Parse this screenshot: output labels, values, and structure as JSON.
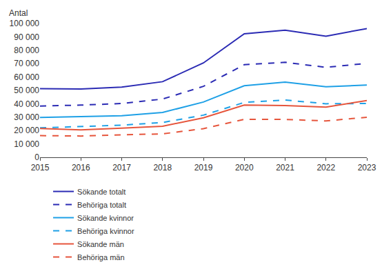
{
  "chart_data": {
    "type": "line",
    "ylabel": "Antal",
    "x": [
      2015,
      2016,
      2017,
      2018,
      2019,
      2020,
      2021,
      2022,
      2023
    ],
    "series": [
      {
        "name": "Sökande totalt",
        "color": "#2b2bb4",
        "line_style": "solid",
        "values": [
          51300,
          51000,
          52400,
          56500,
          70500,
          92300,
          95000,
          90500,
          96200
        ]
      },
      {
        "name": "Behöriga totalt",
        "color": "#2b2bb4",
        "line_style": "dash",
        "values": [
          38300,
          39000,
          40200,
          43500,
          53000,
          69200,
          71000,
          67200,
          70200
        ]
      },
      {
        "name": "Sökande kvinnor",
        "color": "#1ea0e6",
        "line_style": "solid",
        "values": [
          29800,
          30500,
          31000,
          33500,
          41300,
          53500,
          56200,
          52700,
          54000
        ]
      },
      {
        "name": "Behöriga kvinnor",
        "color": "#1ea0e6",
        "line_style": "dash",
        "values": [
          22000,
          23100,
          24000,
          26000,
          31500,
          41000,
          42800,
          40000,
          40200
        ]
      },
      {
        "name": "Sökande män",
        "color": "#e6553c",
        "line_style": "solid",
        "values": [
          21500,
          20500,
          21800,
          23200,
          29500,
          39000,
          38700,
          37500,
          42400
        ]
      },
      {
        "name": "Behöriga män",
        "color": "#e6553c",
        "line_style": "dash",
        "values": [
          16200,
          15900,
          16800,
          17500,
          21400,
          28400,
          28300,
          27200,
          29900
        ]
      }
    ],
    "xlim": [
      2015,
      2023
    ],
    "xticks": [
      2015,
      2016,
      2017,
      2018,
      2019,
      2020,
      2021,
      2022,
      2023
    ],
    "ylim": [
      0,
      100000
    ],
    "yticks": [
      0,
      {
        "value": 10000,
        "label": "10 000"
      },
      {
        "value": 20000,
        "label": "20 000"
      },
      {
        "value": 30000,
        "label": "30 000"
      },
      {
        "value": 40000,
        "label": "40 000"
      },
      {
        "value": 50000,
        "label": "50 000"
      },
      {
        "value": 60000,
        "label": "60 000"
      },
      {
        "value": 70000,
        "label": "70 000"
      },
      {
        "value": 80000,
        "label": "80 000"
      },
      {
        "value": 90000,
        "label": "90 000"
      },
      {
        "value": 100000,
        "label": "100 000"
      }
    ],
    "grid": false,
    "legend": "bottom"
  }
}
